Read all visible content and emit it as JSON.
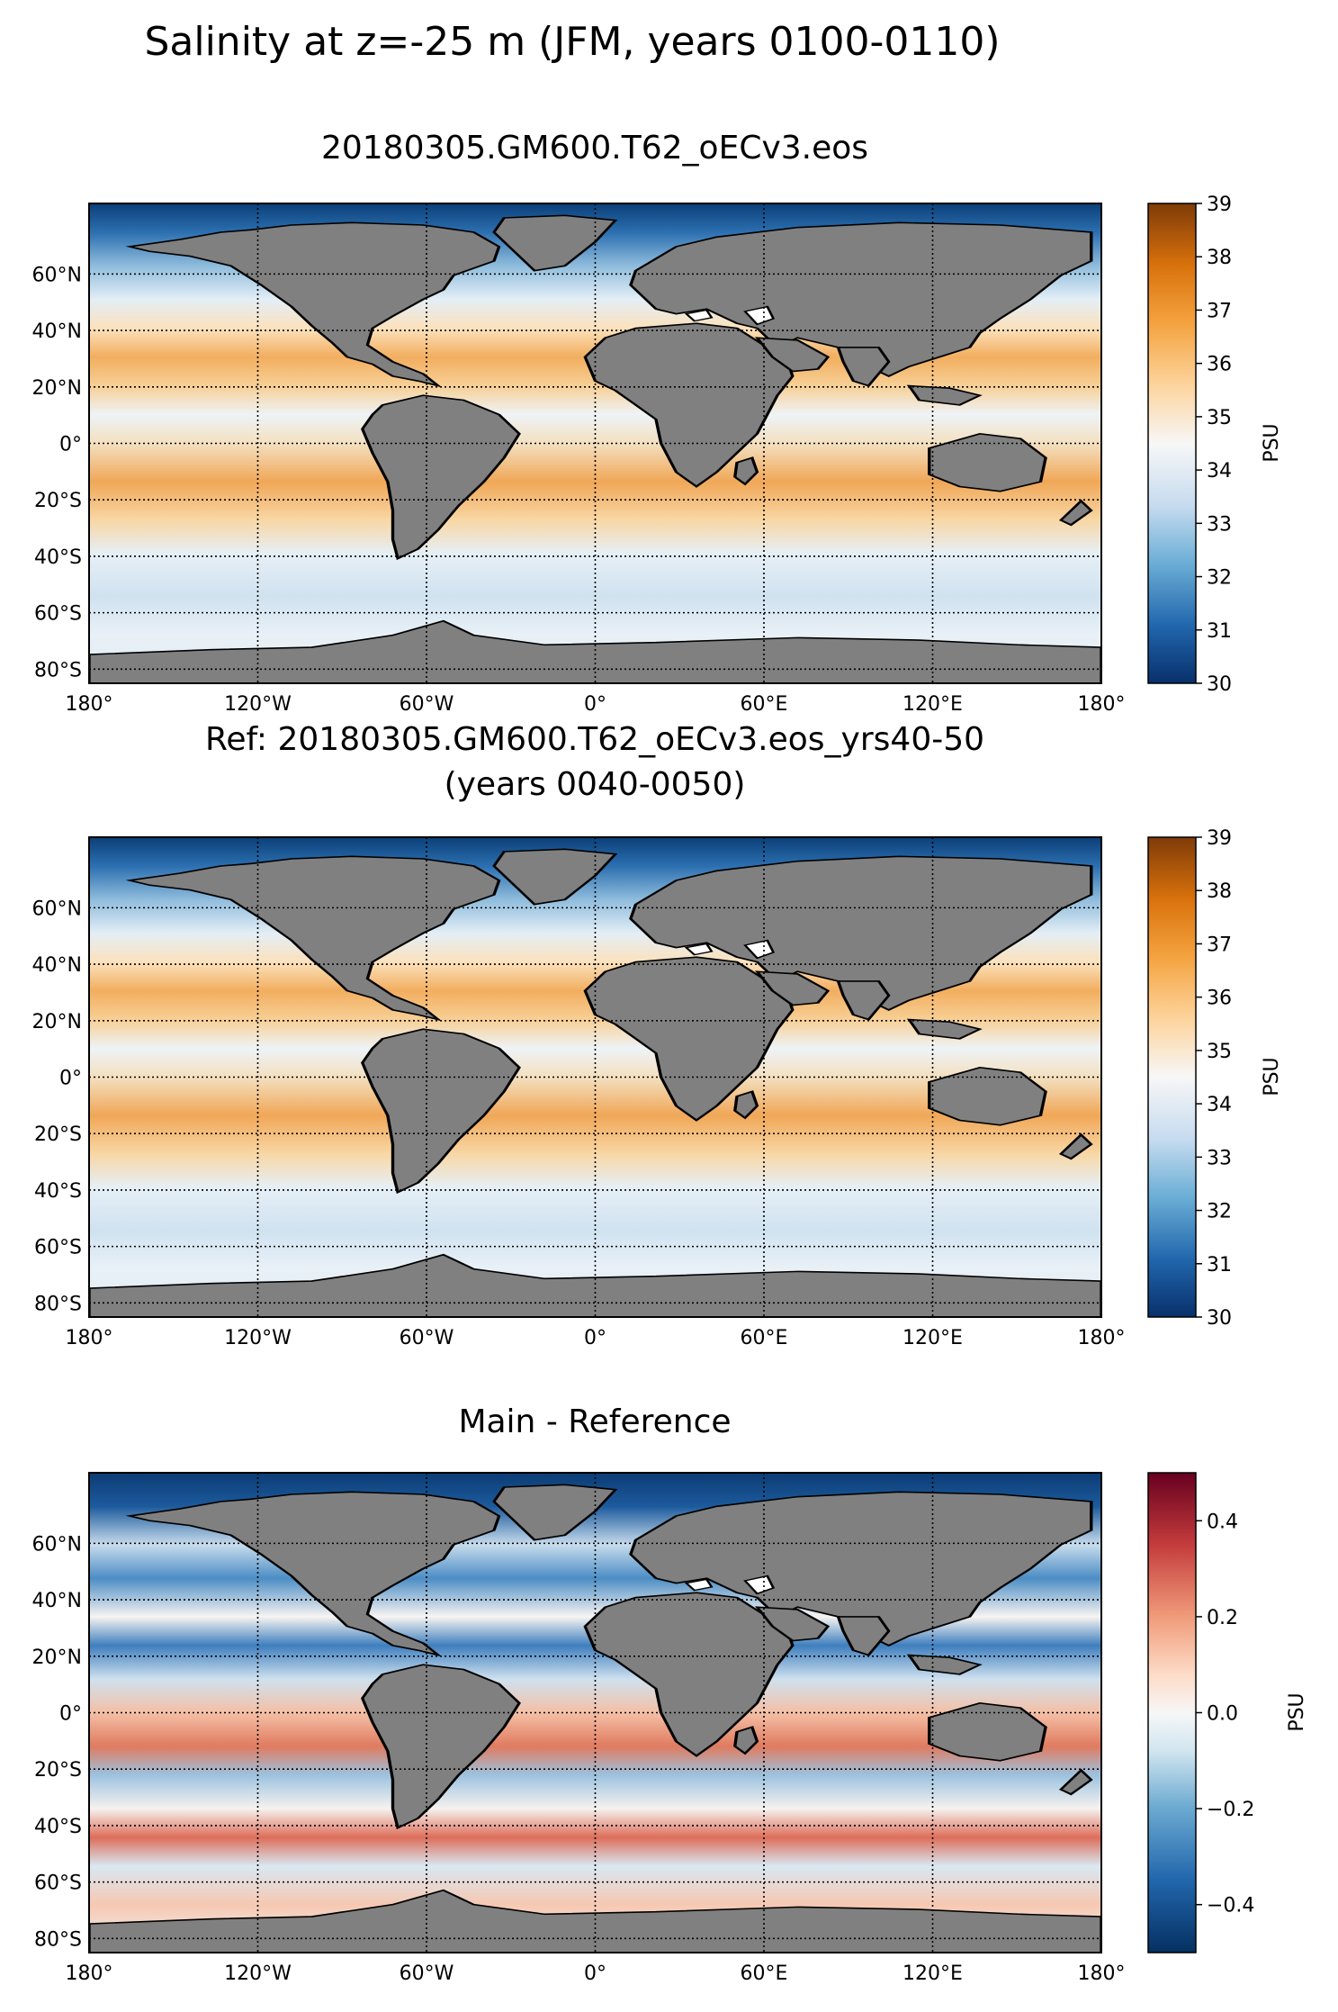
{
  "figure": {
    "title": "Salinity at z=-25 m (JFM, years 0100-0110)"
  },
  "panels": [
    {
      "title": "20180305.GM600.T62_oECv3.eos",
      "colorbar": {
        "label": "PSU",
        "ticks": [
          "30",
          "31",
          "32",
          "33",
          "34",
          "35",
          "36",
          "37",
          "38",
          "39"
        ],
        "range": [
          30,
          39
        ],
        "colormap": "blue-white-orange"
      }
    },
    {
      "title": "Ref: 20180305.GM600.T62_oECv3.eos_yrs40-50",
      "subtitle": "(years 0040-0050)",
      "colorbar": {
        "label": "PSU",
        "ticks": [
          "30",
          "31",
          "32",
          "33",
          "34",
          "35",
          "36",
          "37",
          "38",
          "39"
        ],
        "range": [
          30,
          39
        ],
        "colormap": "blue-white-orange"
      }
    },
    {
      "title": "Main - Reference",
      "colorbar": {
        "label": "PSU",
        "ticks": [
          "−0.4",
          "−0.2",
          "0.0",
          "0.2",
          "0.4"
        ],
        "range": [
          -0.5,
          0.5
        ],
        "colormap": "blue-white-red"
      }
    }
  ],
  "map": {
    "lon_ticks": [
      "180°",
      "120°W",
      "60°W",
      "0°",
      "60°E",
      "120°E",
      "180°"
    ],
    "lon_values": [
      -180,
      -120,
      -60,
      0,
      60,
      120,
      180
    ],
    "lat_ticks": [
      "60°N",
      "40°N",
      "20°N",
      "0°",
      "20°S",
      "40°S",
      "60°S",
      "80°S"
    ],
    "lat_values": [
      60,
      40,
      20,
      0,
      -20,
      -40,
      -60,
      -80
    ],
    "lat_range": [
      -85,
      85
    ],
    "lon_range": [
      -180,
      180
    ],
    "gridlines": true,
    "land_color": "#808080"
  }
}
